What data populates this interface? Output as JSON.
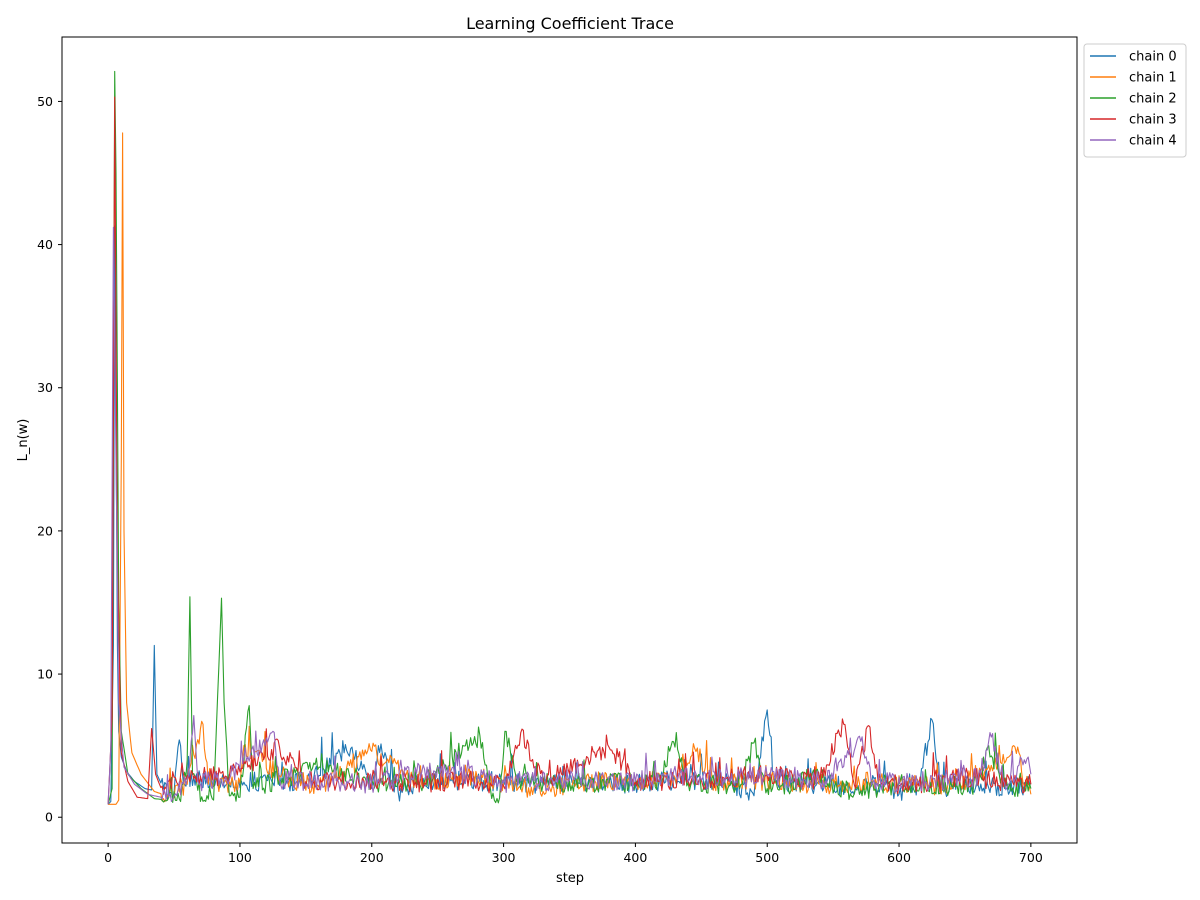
{
  "chart_data": {
    "type": "line",
    "title": "Learning Coefficient Trace",
    "xlabel": "step",
    "ylabel": "L_n(w)",
    "xlim": [
      -35,
      735
    ],
    "ylim": [
      -1.8,
      54.5
    ],
    "xticks": [
      0,
      100,
      200,
      300,
      400,
      500,
      600,
      700
    ],
    "yticks": [
      0,
      10,
      20,
      30,
      40,
      50
    ],
    "grid": false,
    "legend_position": "outside-top-right",
    "series": [
      {
        "name": "chain 0",
        "color": "#1f77b4",
        "points": [
          [
            0,
            0.9
          ],
          [
            2,
            1.1
          ],
          [
            4,
            12.0
          ],
          [
            5,
            41.3
          ],
          [
            6,
            28.0
          ],
          [
            7,
            12.0
          ],
          [
            8,
            6.0
          ],
          [
            10,
            4.2
          ],
          [
            14,
            3.2
          ],
          [
            20,
            2.5
          ],
          [
            28,
            2.0
          ],
          [
            33,
            1.9
          ],
          [
            35,
            12.0
          ],
          [
            37,
            3.0
          ],
          [
            42,
            2.0
          ],
          [
            50,
            1.6
          ],
          [
            54,
            5.4
          ],
          [
            58,
            2.3
          ],
          [
            70,
            2.8
          ],
          [
            90,
            2.3
          ],
          [
            120,
            2.6
          ],
          [
            150,
            2.3
          ],
          [
            185,
            4.9
          ],
          [
            200,
            2.0
          ],
          [
            205,
            5.0
          ],
          [
            220,
            1.8
          ],
          [
            250,
            2.7
          ],
          [
            280,
            2.4
          ],
          [
            300,
            2.6
          ],
          [
            330,
            2.2
          ],
          [
            360,
            2.5
          ],
          [
            400,
            2.3
          ],
          [
            430,
            2.6
          ],
          [
            470,
            2.5
          ],
          [
            490,
            1.5
          ],
          [
            500,
            7.5
          ],
          [
            505,
            2.6
          ],
          [
            520,
            2.4
          ],
          [
            560,
            2.2
          ],
          [
            590,
            2.3
          ],
          [
            600,
            1.6
          ],
          [
            615,
            2.2
          ],
          [
            625,
            6.8
          ],
          [
            632,
            2.1
          ],
          [
            650,
            2.3
          ],
          [
            680,
            2.0
          ],
          [
            700,
            2.3
          ]
        ]
      },
      {
        "name": "chain 1",
        "color": "#ff7f0e",
        "points": [
          [
            0,
            0.9
          ],
          [
            4,
            0.9
          ],
          [
            6,
            0.9
          ],
          [
            8,
            1.2
          ],
          [
            10,
            25.0
          ],
          [
            11,
            47.8
          ],
          [
            12,
            20.0
          ],
          [
            14,
            8.0
          ],
          [
            18,
            4.5
          ],
          [
            25,
            3.0
          ],
          [
            35,
            1.8
          ],
          [
            45,
            1.5
          ],
          [
            60,
            2.3
          ],
          [
            72,
            6.5
          ],
          [
            76,
            2.3
          ],
          [
            100,
            2.4
          ],
          [
            103,
            5.0
          ],
          [
            130,
            2.9
          ],
          [
            160,
            2.1
          ],
          [
            200,
            4.6
          ],
          [
            240,
            2.3
          ],
          [
            280,
            2.8
          ],
          [
            330,
            1.8
          ],
          [
            360,
            2.4
          ],
          [
            400,
            2.5
          ],
          [
            430,
            2.8
          ],
          [
            445,
            4.8
          ],
          [
            460,
            2.3
          ],
          [
            500,
            2.6
          ],
          [
            540,
            2.3
          ],
          [
            580,
            2.5
          ],
          [
            620,
            2.1
          ],
          [
            660,
            2.8
          ],
          [
            690,
            4.9
          ],
          [
            695,
            2.2
          ],
          [
            700,
            1.6
          ]
        ]
      },
      {
        "name": "chain 2",
        "color": "#2ca02c",
        "points": [
          [
            0,
            0.9
          ],
          [
            3,
            2.0
          ],
          [
            5,
            52.1
          ],
          [
            6,
            45.0
          ],
          [
            8,
            15.0
          ],
          [
            10,
            6.0
          ],
          [
            15,
            3.0
          ],
          [
            25,
            2.0
          ],
          [
            35,
            1.3
          ],
          [
            45,
            1.2
          ],
          [
            55,
            1.1
          ],
          [
            60,
            4.0
          ],
          [
            62,
            15.4
          ],
          [
            64,
            3.0
          ],
          [
            70,
            1.1
          ],
          [
            80,
            1.2
          ],
          [
            86,
            15.3
          ],
          [
            88,
            8.0
          ],
          [
            92,
            1.5
          ],
          [
            100,
            1.4
          ],
          [
            107,
            7.8
          ],
          [
            110,
            2.0
          ],
          [
            130,
            2.6
          ],
          [
            160,
            3.5
          ],
          [
            200,
            2.4
          ],
          [
            240,
            2.5
          ],
          [
            282,
            5.7
          ],
          [
            290,
            2.0
          ],
          [
            296,
            1.0
          ],
          [
            301,
            6.0
          ],
          [
            310,
            2.5
          ],
          [
            340,
            2.4
          ],
          [
            380,
            2.4
          ],
          [
            420,
            2.6
          ],
          [
            428,
            5.3
          ],
          [
            440,
            2.4
          ],
          [
            480,
            2.3
          ],
          [
            490,
            5.2
          ],
          [
            500,
            2.0
          ],
          [
            540,
            2.7
          ],
          [
            570,
            1.6
          ],
          [
            600,
            2.4
          ],
          [
            640,
            2.2
          ],
          [
            660,
            2.3
          ],
          [
            668,
            5.0
          ],
          [
            680,
            2.1
          ],
          [
            700,
            2.0
          ]
        ]
      },
      {
        "name": "chain 3",
        "color": "#d62728",
        "points": [
          [
            0,
            0.9
          ],
          [
            3,
            7.0
          ],
          [
            5,
            50.3
          ],
          [
            7,
            18.0
          ],
          [
            10,
            4.5
          ],
          [
            15,
            2.5
          ],
          [
            22,
            1.4
          ],
          [
            30,
            1.3
          ],
          [
            33,
            6.2
          ],
          [
            36,
            3.0
          ],
          [
            42,
            1.6
          ],
          [
            50,
            2.8
          ],
          [
            60,
            2.9
          ],
          [
            90,
            2.8
          ],
          [
            130,
            4.9
          ],
          [
            150,
            2.5
          ],
          [
            200,
            2.6
          ],
          [
            240,
            2.4
          ],
          [
            270,
            2.6
          ],
          [
            300,
            2.2
          ],
          [
            313,
            5.9
          ],
          [
            330,
            2.6
          ],
          [
            380,
            4.9
          ],
          [
            400,
            2.5
          ],
          [
            450,
            2.6
          ],
          [
            500,
            3.0
          ],
          [
            540,
            2.6
          ],
          [
            558,
            6.5
          ],
          [
            566,
            2.3
          ],
          [
            577,
            6.4
          ],
          [
            584,
            2.5
          ],
          [
            620,
            2.1
          ],
          [
            650,
            2.8
          ],
          [
            700,
            2.3
          ]
        ]
      },
      {
        "name": "chain 4",
        "color": "#9467bd",
        "points": [
          [
            0,
            0.9
          ],
          [
            2,
            5.0
          ],
          [
            4,
            41.2
          ],
          [
            6,
            25.0
          ],
          [
            8,
            8.0
          ],
          [
            12,
            3.5
          ],
          [
            20,
            2.3
          ],
          [
            30,
            1.6
          ],
          [
            40,
            1.4
          ],
          [
            50,
            1.5
          ],
          [
            60,
            2.6
          ],
          [
            65,
            7.1
          ],
          [
            68,
            2.5
          ],
          [
            90,
            2.6
          ],
          [
            125,
            6.0
          ],
          [
            130,
            2.6
          ],
          [
            160,
            2.5
          ],
          [
            200,
            2.3
          ],
          [
            250,
            3.5
          ],
          [
            300,
            2.4
          ],
          [
            350,
            2.6
          ],
          [
            400,
            2.5
          ],
          [
            420,
            2.9
          ],
          [
            450,
            2.6
          ],
          [
            500,
            2.9
          ],
          [
            540,
            2.4
          ],
          [
            571,
            5.3
          ],
          [
            580,
            2.4
          ],
          [
            620,
            2.5
          ],
          [
            660,
            2.8
          ],
          [
            670,
            5.6
          ],
          [
            680,
            2.4
          ],
          [
            698,
            4.2
          ],
          [
            700,
            3.0
          ]
        ]
      }
    ]
  }
}
